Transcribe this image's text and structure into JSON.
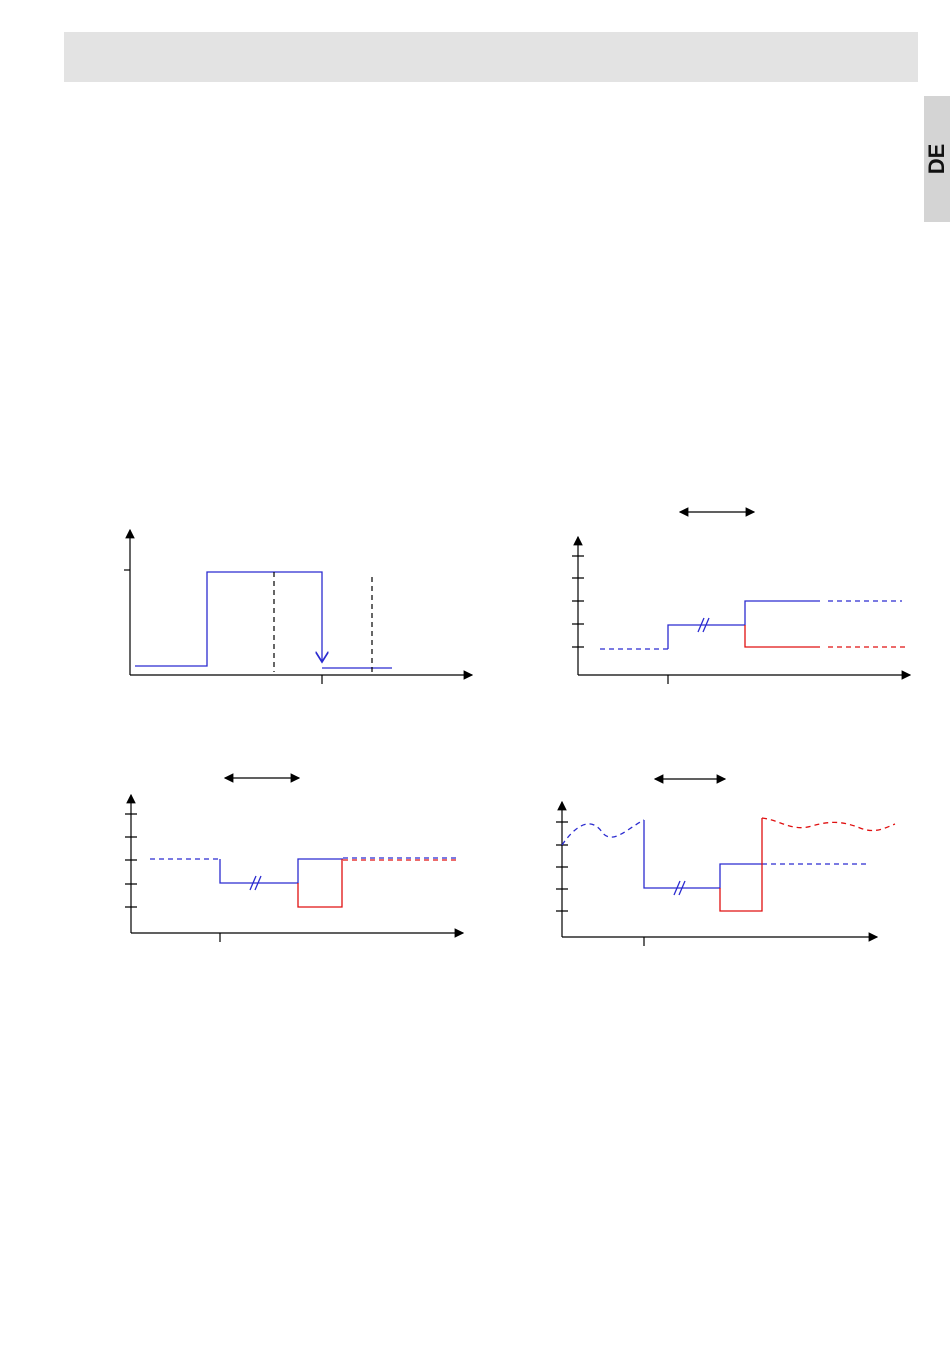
{
  "side_tab": {
    "label": "DE"
  }
}
